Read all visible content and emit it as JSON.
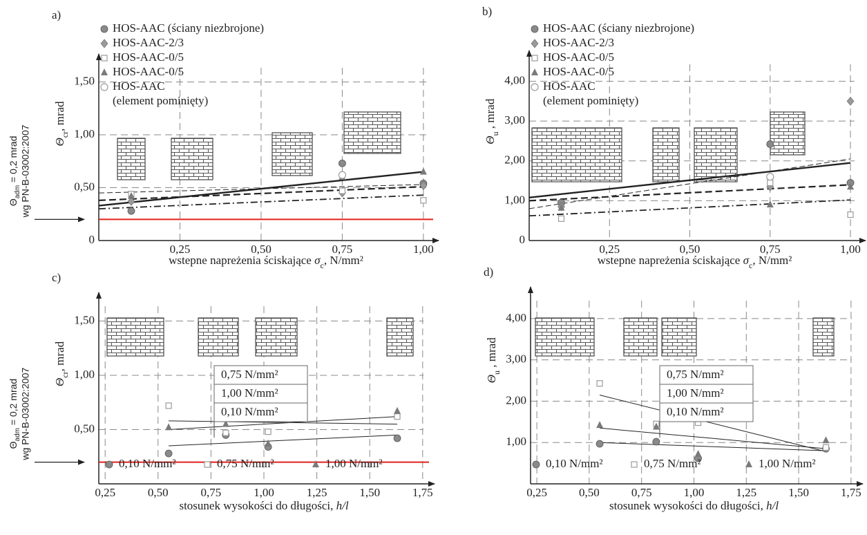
{
  "chart_data": [
    {
      "type": "scatter",
      "title": "a)",
      "x": [
        0.1,
        0.75,
        1.0
      ],
      "series": [
        {
          "name": "HOS-AAC (ściany niezbrojone)",
          "marker": "circle",
          "color": "#8a8a8a",
          "values": [
            0.28,
            0.73,
            0.54
          ]
        },
        {
          "name": "HOS-AAC-2/3",
          "marker": "diamond",
          "color": "#9a9a9a",
          "values": [
            0.37,
            0.45,
            0.52
          ]
        },
        {
          "name": "HOS-AAC-0/5",
          "marker": "square",
          "color": "#9a9a9a",
          "values": [
            0.44,
            0.47,
            0.38
          ]
        },
        {
          "name": "HOS-AAC-0/5",
          "marker": "triangle",
          "color": "#7a7a7a",
          "values": [
            0.42,
            0.6,
            0.65
          ]
        },
        {
          "name": "HOS-AAC\n(element pominięty)",
          "marker": "open-circle",
          "color": "#9a9a9a",
          "values": [
            null,
            0.62,
            null
          ]
        }
      ],
      "trend_lines": [
        {
          "dash": "solid",
          "x": [
            0,
            1
          ],
          "values": [
            0.33,
            0.65
          ]
        },
        {
          "dash": "dashed",
          "x": [
            0,
            1
          ],
          "values": [
            0.38,
            0.51
          ]
        },
        {
          "dash": "dash-dot",
          "x": [
            0,
            1
          ],
          "values": [
            0.3,
            0.43
          ]
        },
        {
          "dash": "thin",
          "x": [
            0,
            1
          ],
          "values": [
            0.45,
            0.53
          ]
        }
      ],
      "reference_line": 0.2,
      "reference_color": "#e0201b",
      "reference_symbol": "Θ",
      "reference_subscript": "adm",
      "reference_text": " = 0,2 mrad",
      "reference_source": "wg PN-B-03002:2007",
      "xlim": [
        0,
        1.03
      ],
      "ylim": [
        0,
        1.7
      ],
      "xticks": [
        {
          "value": 0.25,
          "label": "0,25"
        },
        {
          "value": 0.5,
          "label": "0,50"
        },
        {
          "value": 0.75,
          "label": "0,75"
        },
        {
          "value": 1.0,
          "label": "1,00"
        }
      ],
      "yticks": [
        0,
        {
          "value": 0.5,
          "label": "0,50"
        },
        {
          "value": 1.0,
          "label": "1,00"
        },
        {
          "value": 1.5,
          "label": "1,50"
        }
      ],
      "ylabel_symbol": "Θ",
      "ylabel_subscript": "cr",
      "ylabel_unit": ",  mrad",
      "xlabel": "wstepne napreżenia ściskające  ",
      "xlabel_symbol": "σ",
      "xlabel_subscript": "c",
      "xlabel_unit": ",  N/mm²",
      "legend": "upper left",
      "grid": true
    },
    {
      "type": "scatter",
      "title": "b)",
      "x": [
        0.1,
        0.75,
        1.0
      ],
      "series": [
        {
          "name": "HOS-AAC (ściany niezbrojone)",
          "marker": "circle",
          "color": "#8a8a8a",
          "values": [
            0.95,
            2.42,
            1.45
          ]
        },
        {
          "name": "HOS-AAC-2/3",
          "marker": "diamond",
          "color": "#9a9a9a",
          "values": [
            0.85,
            1.35,
            3.5
          ]
        },
        {
          "name": "HOS-AAC-0/5",
          "marker": "square",
          "color": "#9a9a9a",
          "values": [
            0.55,
            1.45,
            0.65
          ]
        },
        {
          "name": "HOS-AAC-0/5",
          "marker": "triangle",
          "color": "#7a7a7a",
          "values": [
            0.82,
            0.9,
            1.35
          ]
        },
        {
          "name": "HOS-AAC\n(element pominięty)",
          "marker": "open-circle",
          "color": "#9a9a9a",
          "values": [
            null,
            1.6,
            null
          ]
        }
      ],
      "trend_lines": [
        {
          "dash": "solid",
          "x": [
            0,
            1
          ],
          "values": [
            1.08,
            1.95
          ]
        },
        {
          "dash": "dashed",
          "x": [
            0,
            1
          ],
          "values": [
            1.0,
            1.4
          ]
        },
        {
          "dash": "dash-dot",
          "x": [
            0,
            1
          ],
          "values": [
            0.62,
            1.02
          ]
        },
        {
          "dash": "thin",
          "x": [
            0,
            1
          ],
          "values": [
            0.8,
            2.05
          ]
        }
      ],
      "xlim": [
        0,
        1.03
      ],
      "ylim": [
        0,
        4.6
      ],
      "xticks": [
        {
          "value": 0.25,
          "label": "0,25"
        },
        {
          "value": 0.5,
          "label": "0,50"
        },
        {
          "value": 0.75,
          "label": "0,75"
        },
        {
          "value": 1.0,
          "label": "1,00"
        }
      ],
      "yticks": [
        0,
        {
          "value": 1,
          "label": "1,00"
        },
        {
          "value": 2,
          "label": "2,00"
        },
        {
          "value": 3,
          "label": "3,00"
        },
        {
          "value": 4,
          "label": "4,00"
        }
      ],
      "ylabel_symbol": "Θ",
      "ylabel_subscript": "u",
      "ylabel_unit": " ,  mrad",
      "xlabel": "wstepne napreżenia ściskające  ",
      "xlabel_symbol": "σ",
      "xlabel_subscript": "c",
      "xlabel_unit": ",  N/mm²",
      "legend": "upper left",
      "grid": true
    },
    {
      "type": "scatter",
      "title": "c)",
      "x": [
        0.55,
        0.82,
        1.02,
        1.63
      ],
      "series": [
        {
          "name": "0,10 N/mm²",
          "marker": "circle",
          "color": "#8a8a8a",
          "values": [
            0.28,
            0.45,
            0.34,
            0.42
          ]
        },
        {
          "name": "0,75 N/mm²",
          "marker": "square",
          "color": "#9a9a9a",
          "values": [
            0.72,
            0.47,
            0.48,
            0.62
          ]
        },
        {
          "name": "1,00 N/mm²",
          "marker": "triangle",
          "color": "#7a7a7a",
          "values": [
            0.52,
            0.55,
            0.37,
            0.67
          ]
        }
      ],
      "trend_lines": [
        {
          "dash": "thin-solid",
          "x": [
            0.55,
            1.63
          ],
          "values": [
            0.35,
            0.45
          ]
        },
        {
          "dash": "thin-solid",
          "x": [
            0.55,
            1.63
          ],
          "values": [
            0.5,
            0.62
          ]
        },
        {
          "dash": "thin-solid",
          "x": [
            0.55,
            1.63
          ],
          "values": [
            0.58,
            0.55
          ]
        }
      ],
      "annotations": [
        "0,75  N/mm²",
        "1,00  N/mm²",
        "0,10  N/mm²"
      ],
      "reference_line": 0.2,
      "reference_color": "#e0201b",
      "reference_symbol": "Θ",
      "reference_subscript": "adm",
      "reference_text": " = 0,2 mrad",
      "reference_source": "wg PN-B-03002:2007",
      "xlim": [
        0.22,
        1.78
      ],
      "ylim": [
        0,
        1.7
      ],
      "xticks": [
        {
          "value": 0.25,
          "label": "0,25"
        },
        {
          "value": 0.5,
          "label": "0,50"
        },
        {
          "value": 0.75,
          "label": "0,75"
        },
        {
          "value": 1.0,
          "label": "1,00"
        },
        {
          "value": 1.25,
          "label": "1,25"
        },
        {
          "value": 1.5,
          "label": "1,50"
        },
        {
          "value": 1.75,
          "label": "1,75"
        }
      ],
      "yticks": [
        {
          "value": 0.5,
          "label": "0,50"
        },
        {
          "value": 1.0,
          "label": "1,00"
        },
        {
          "value": 1.5,
          "label": "1,50"
        }
      ],
      "ylabel_symbol": "Θ",
      "ylabel_subscript": "cr",
      "ylabel_unit": ",  mrad",
      "xlabel": "stosunek wysokości do długości,  ",
      "xlabel_symbol": "h/l",
      "legend": "bottom",
      "grid": true
    },
    {
      "type": "scatter",
      "title": "d)",
      "x": [
        0.55,
        0.82,
        1.02,
        1.63
      ],
      "series": [
        {
          "name": "0,10  N/mm²",
          "marker": "circle",
          "color": "#8a8a8a",
          "values": [
            0.97,
            1.02,
            0.62,
            0.85
          ]
        },
        {
          "name": "0,75  N/mm²",
          "marker": "square",
          "color": "#9a9a9a",
          "values": [
            2.43,
            1.45,
            1.48,
            0.88
          ]
        },
        {
          "name": "1,00  N/mm²",
          "marker": "triangle",
          "color": "#7a7a7a",
          "values": [
            1.42,
            1.38,
            0.72,
            1.05
          ]
        }
      ],
      "trend_lines": [
        {
          "dash": "thin-solid",
          "x": [
            0.55,
            1.63
          ],
          "values": [
            1.0,
            0.8
          ]
        },
        {
          "dash": "thin-solid",
          "x": [
            0.55,
            1.63
          ],
          "values": [
            2.15,
            0.78
          ]
        },
        {
          "dash": "thin-solid",
          "x": [
            0.55,
            1.63
          ],
          "values": [
            1.35,
            0.85
          ]
        }
      ],
      "annotations": [
        "0,75  N/mm²",
        "1,00  N/mm²",
        "0,10  N/mm²"
      ],
      "xlim": [
        0.22,
        1.78
      ],
      "ylim": [
        0,
        4.6
      ],
      "xticks": [
        {
          "value": 0.25,
          "label": "0,25"
        },
        {
          "value": 0.5,
          "label": "0,50"
        },
        {
          "value": 0.75,
          "label": "0,75"
        },
        {
          "value": 1.0,
          "label": "1,00"
        },
        {
          "value": 1.25,
          "label": "1,25"
        },
        {
          "value": 1.5,
          "label": "1,50"
        },
        {
          "value": 1.75,
          "label": "1,75"
        }
      ],
      "yticks": [
        {
          "value": 1,
          "label": "1,00"
        },
        {
          "value": 2,
          "label": "2,00"
        },
        {
          "value": 3,
          "label": "3,00"
        },
        {
          "value": 4,
          "label": "4,00"
        }
      ],
      "ylabel_symbol": "Θ",
      "ylabel_subscript": "u",
      "ylabel_unit": " ,  mrad",
      "xlabel": "stosunek wysokości do długości,  ",
      "xlabel_symbol": "h/l",
      "legend": "bottom",
      "grid": true
    }
  ]
}
